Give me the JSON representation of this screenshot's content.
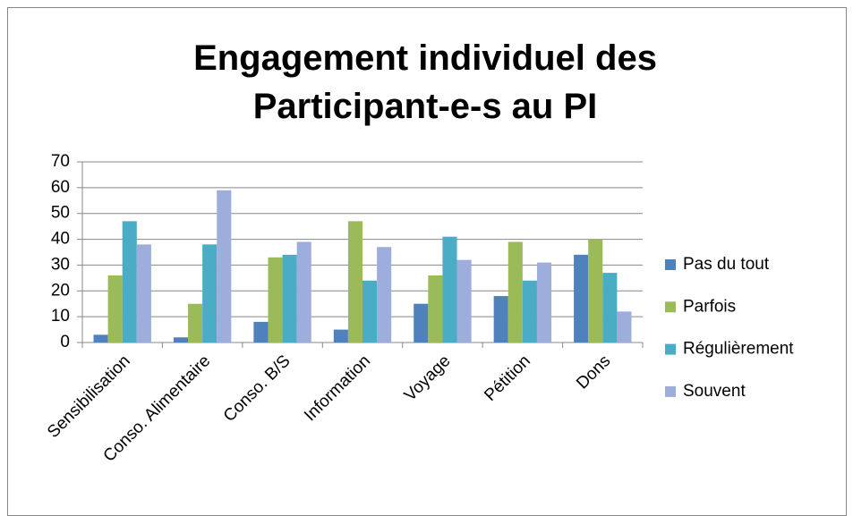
{
  "chart_data": {
    "type": "bar",
    "title": "Engagement individuel des Participant-e-s au PI",
    "categories": [
      "Sensibilisation",
      "Conso. Alimentaire",
      "Conso. B/S",
      "Information",
      "Voyage",
      "Pétition",
      "Dons"
    ],
    "series": [
      {
        "name": "Pas du tout",
        "color": "#4f81bd",
        "values": [
          3,
          2,
          8,
          5,
          15,
          18,
          34
        ]
      },
      {
        "name": "Parfois",
        "color": "#9bbb59",
        "values": [
          26,
          15,
          33,
          47,
          26,
          39,
          40
        ]
      },
      {
        "name": "Régulièrement",
        "color": "#4bacc6",
        "values": [
          47,
          38,
          34,
          24,
          41,
          24,
          27
        ]
      },
      {
        "name": "Souvent",
        "color": "#9daedd",
        "values": [
          38,
          59,
          39,
          37,
          32,
          31,
          12
        ]
      }
    ],
    "ylim": [
      0,
      70
    ],
    "yticks": [
      0,
      10,
      20,
      30,
      40,
      50,
      60,
      70
    ],
    "grid": true,
    "legend": "right"
  }
}
